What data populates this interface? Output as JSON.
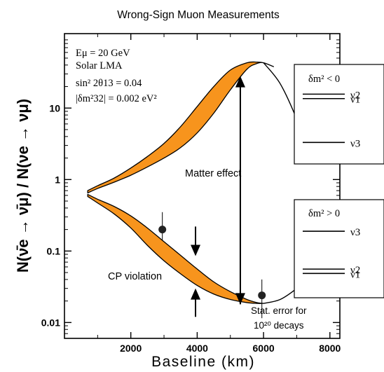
{
  "chart_data": {
    "type": "line",
    "title": "Wrong-Sign Muon Measurements",
    "xlabel": "Baseline (km)",
    "ylabel": "N(ν̄e → ν̄μ) / N(νe → νμ)",
    "yscale": "log",
    "xlim": [
      0,
      8300
    ],
    "ylim": [
      0.006,
      110
    ],
    "x_ticks": [
      {
        "value": 2000,
        "label": "2000"
      },
      {
        "value": 4000,
        "label": "4000"
      },
      {
        "value": 6000,
        "label": "6000"
      },
      {
        "value": 8000,
        "label": "8000"
      }
    ],
    "y_ticks": [
      {
        "value": 0.01,
        "label": "0.01"
      },
      {
        "value": 0.1,
        "label": "0.1"
      },
      {
        "value": 1,
        "label": "1"
      },
      {
        "value": 10,
        "label": "10"
      }
    ],
    "params": [
      "Eμ = 20 GeV",
      "Solar LMA",
      "sin² 2θ13 = 0.04",
      "|δm²32| = 0.002 eV²"
    ],
    "series": [
      {
        "band": "upper",
        "fill": "#f7941d",
        "x": [
          700,
          1000,
          1500,
          2000,
          2500,
          3000,
          3500,
          4000,
          4500,
          5000,
          5500,
          5800,
          6000,
          6300
        ],
        "y_low": [
          0.65,
          0.75,
          0.92,
          1.15,
          1.5,
          2.0,
          2.8,
          4.5,
          8.5,
          18,
          35,
          42,
          43,
          38
        ],
        "y_high": [
          0.7,
          0.82,
          1.05,
          1.45,
          2.1,
          3.2,
          5.5,
          10.5,
          20,
          34,
          43,
          44,
          43,
          38
        ]
      },
      {
        "band": "lower",
        "fill": "#f7941d",
        "x": [
          700,
          1000,
          1500,
          2000,
          2500,
          3000,
          3500,
          4000,
          4500,
          5000,
          5500,
          5800,
          6000
        ],
        "y_low": [
          0.58,
          0.47,
          0.33,
          0.21,
          0.12,
          0.073,
          0.048,
          0.033,
          0.025,
          0.021,
          0.019,
          0.0185,
          0.0185
        ],
        "y_high": [
          0.62,
          0.53,
          0.42,
          0.31,
          0.21,
          0.135,
          0.087,
          0.056,
          0.037,
          0.027,
          0.021,
          0.019,
          0.0185
        ]
      },
      {
        "band": "upper-tail",
        "x": [
          6000,
          6500,
          7000,
          7400
        ],
        "y": [
          43,
          22,
          7,
          2.1
        ]
      },
      {
        "band": "lower-tail",
        "x": [
          6000,
          6500,
          7000,
          7400
        ],
        "y": [
          0.0185,
          0.021,
          0.03,
          0.045
        ]
      }
    ],
    "points": [
      {
        "x": 2950,
        "y": 0.2,
        "err_up": 0.35,
        "err_low": 0.14
      },
      {
        "x": 5950,
        "y": 0.024,
        "err_up": 0.04,
        "err_low": 0.0115
      }
    ],
    "annotations": {
      "matter_effect": "Matter effect",
      "cp_violation": "CP violation",
      "stat_error": "Stat. error for",
      "decays": "10²⁰ decays"
    },
    "arrows": [
      {
        "label": "matter",
        "x": 5300,
        "y_from": 0.018,
        "y_to": 28
      },
      {
        "label": "cp-down",
        "x": 3950,
        "y_from": 0.22,
        "y_to": 0.085
      },
      {
        "label": "cp-up",
        "x": 3950,
        "y_from": 0.012,
        "y_to": 0.03
      }
    ]
  },
  "legend_inverted": {
    "condition": "δm² < 0",
    "levels": [
      {
        "label": "ν2",
        "level": 0.77
      },
      {
        "label": "ν1",
        "level": 0.71
      },
      {
        "label": "ν3",
        "level": 0.12
      }
    ]
  },
  "legend_normal": {
    "condition": "δm² > 0",
    "levels": [
      {
        "label": "ν3",
        "level": 0.74
      },
      {
        "label": "ν2",
        "level": 0.22
      },
      {
        "label": "ν1",
        "level": 0.16
      }
    ]
  }
}
